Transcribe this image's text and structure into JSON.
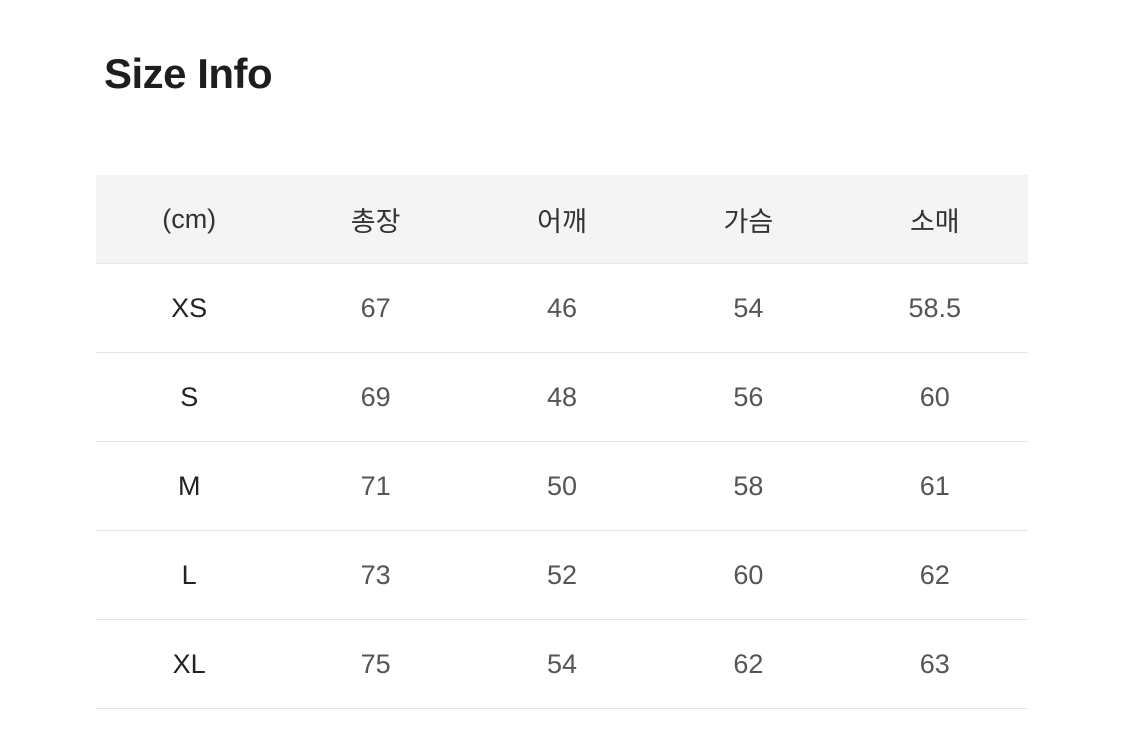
{
  "title": "Size Info",
  "table": {
    "headers": [
      "(cm)",
      "총장",
      "어깨",
      "가슴",
      "소매"
    ],
    "rows": [
      [
        "XS",
        "67",
        "46",
        "54",
        "58.5"
      ],
      [
        "S",
        "69",
        "48",
        "56",
        "60"
      ],
      [
        "M",
        "71",
        "50",
        "58",
        "61"
      ],
      [
        "L",
        "73",
        "52",
        "60",
        "62"
      ],
      [
        "XL",
        "75",
        "54",
        "62",
        "63"
      ]
    ]
  }
}
